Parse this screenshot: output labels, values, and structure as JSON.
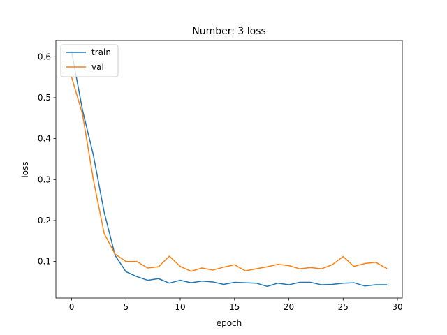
{
  "chart_data": {
    "type": "line",
    "title": "Number: 3 loss",
    "xlabel": "epoch",
    "ylabel": "loss",
    "xlim": [
      -1.45,
      30.45
    ],
    "ylim": [
      0.0107,
      0.6397
    ],
    "xticks": [
      0,
      5,
      10,
      15,
      20,
      25,
      30
    ],
    "yticks": [
      0.1,
      0.2,
      0.3,
      0.4,
      0.5,
      0.6
    ],
    "grid": false,
    "legend_position": "top-left",
    "x": [
      0,
      1,
      2,
      3,
      4,
      5,
      6,
      7,
      8,
      9,
      10,
      11,
      12,
      13,
      14,
      15,
      16,
      17,
      18,
      19,
      20,
      21,
      22,
      23,
      24,
      25,
      26,
      27,
      28,
      29
    ],
    "series": [
      {
        "name": "train",
        "color": "#1f77b4",
        "values": [
          0.612,
          0.47,
          0.36,
          0.22,
          0.115,
          0.075,
          0.063,
          0.054,
          0.058,
          0.047,
          0.054,
          0.048,
          0.052,
          0.05,
          0.044,
          0.049,
          0.048,
          0.047,
          0.039,
          0.047,
          0.043,
          0.049,
          0.049,
          0.043,
          0.044,
          0.047,
          0.048,
          0.04,
          0.043,
          0.043
        ]
      },
      {
        "name": "val",
        "color": "#ff7f0e",
        "values": [
          0.55,
          0.46,
          0.3,
          0.168,
          0.118,
          0.1,
          0.1,
          0.084,
          0.087,
          0.113,
          0.088,
          0.076,
          0.084,
          0.079,
          0.086,
          0.092,
          0.077,
          0.082,
          0.087,
          0.093,
          0.09,
          0.082,
          0.085,
          0.082,
          0.092,
          0.112,
          0.088,
          0.095,
          0.098,
          0.083
        ]
      }
    ]
  }
}
